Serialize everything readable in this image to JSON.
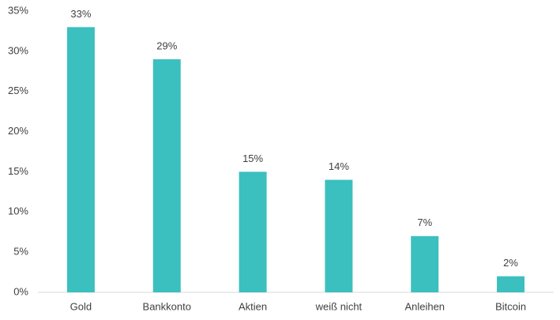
{
  "chart_data": {
    "type": "bar",
    "categories": [
      "Gold",
      "Bankkonto",
      "Aktien",
      "weiß nicht",
      "Anleihen",
      "Bitcoin"
    ],
    "values": [
      33,
      29,
      15,
      14,
      7,
      2
    ],
    "value_labels": [
      "33%",
      "29%",
      "15%",
      "14%",
      "7%",
      "2%"
    ],
    "color": "#3bbfbf",
    "ylim": [
      0,
      35
    ],
    "yticks": [
      {
        "value": 0,
        "label": "0%"
      },
      {
        "value": 5,
        "label": "5%"
      },
      {
        "value": 10,
        "label": "10%"
      },
      {
        "value": 15,
        "label": "15%"
      },
      {
        "value": 20,
        "label": "20%"
      },
      {
        "value": 25,
        "label": "25%"
      },
      {
        "value": 30,
        "label": "30%"
      },
      {
        "value": 35,
        "label": "35%"
      }
    ],
    "grid": false
  }
}
